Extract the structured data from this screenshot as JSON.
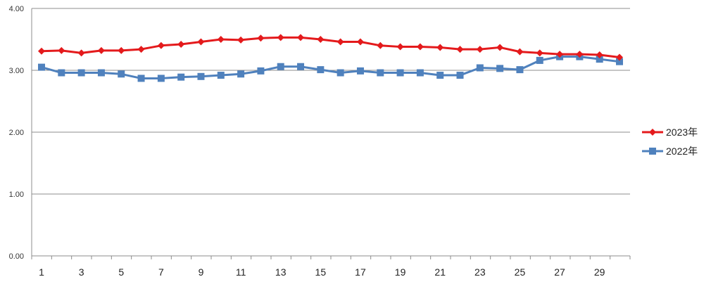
{
  "chart_data": {
    "type": "line",
    "x": [
      1,
      2,
      3,
      4,
      5,
      6,
      7,
      8,
      9,
      10,
      11,
      12,
      13,
      14,
      15,
      16,
      17,
      18,
      19,
      20,
      21,
      22,
      23,
      24,
      25,
      26,
      27,
      28,
      29,
      30
    ],
    "x_tick_labels": [
      "1",
      "3",
      "5",
      "7",
      "9",
      "11",
      "13",
      "15",
      "17",
      "19",
      "21",
      "23",
      "25",
      "27",
      "29"
    ],
    "y_tick_labels": [
      "0.00",
      "1.00",
      "2.00",
      "3.00",
      "4.00"
    ],
    "ylim": [
      0,
      4
    ],
    "grid": true,
    "legend_position": "right",
    "series": [
      {
        "name": "2023年",
        "color": "#e41a1c",
        "marker": "diamond",
        "values": [
          3.31,
          3.32,
          3.28,
          3.32,
          3.32,
          3.34,
          3.4,
          3.42,
          3.46,
          3.5,
          3.49,
          3.52,
          3.53,
          3.53,
          3.5,
          3.46,
          3.46,
          3.4,
          3.38,
          3.38,
          3.37,
          3.34,
          3.34,
          3.37,
          3.3,
          3.28,
          3.26,
          3.26,
          3.25,
          3.21
        ]
      },
      {
        "name": "2022年",
        "color": "#4f81bd",
        "marker": "square",
        "values": [
          3.05,
          2.96,
          2.96,
          2.96,
          2.94,
          2.87,
          2.87,
          2.89,
          2.9,
          2.92,
          2.94,
          2.99,
          3.06,
          3.06,
          3.01,
          2.96,
          2.99,
          2.96,
          2.96,
          2.96,
          2.92,
          2.92,
          3.04,
          3.03,
          3.01,
          3.16,
          3.22,
          3.22,
          3.18,
          3.14
        ]
      }
    ]
  }
}
